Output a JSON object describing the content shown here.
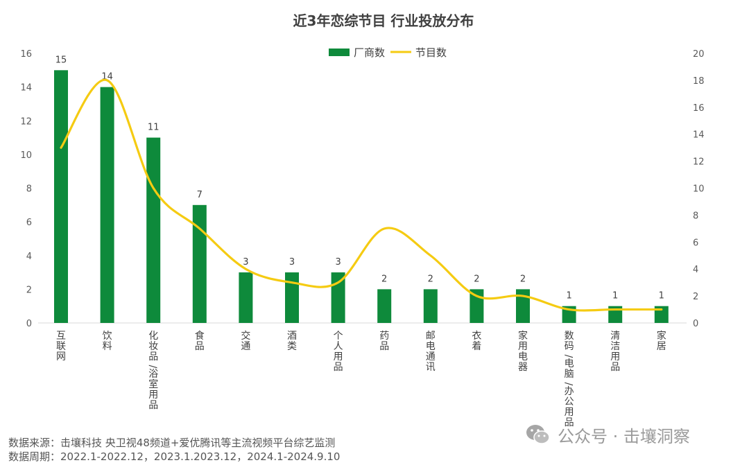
{
  "chart_data": {
    "type": "bar",
    "title": "近3年恋综节目 行业投放分布",
    "categories": [
      "互联网",
      "饮料",
      "化妆品/浴室用品",
      "食品",
      "交通",
      "酒类",
      "个人用品",
      "药品",
      "邮电通讯",
      "衣着",
      "家用电器",
      "数码/电脑/办公用品",
      "清洁用品",
      "家居"
    ],
    "series": [
      {
        "name": "厂商数",
        "kind": "bar",
        "axis": "left",
        "color": "#0E8A3B",
        "values": [
          15,
          14,
          11,
          7,
          3,
          3,
          3,
          2,
          2,
          2,
          2,
          1,
          1,
          1
        ]
      },
      {
        "name": "节目数",
        "kind": "line",
        "axis": "right",
        "color": "#F5CB12",
        "values": [
          13,
          18,
          10,
          7,
          4,
          3,
          3,
          7,
          5,
          2,
          2,
          1,
          1,
          1
        ]
      }
    ],
    "y_left": {
      "min": 0,
      "max": 16,
      "step": 2
    },
    "y_right": {
      "min": 0,
      "max": 20,
      "step": 2
    },
    "data_labels": [
      "15",
      "14",
      "11",
      "7",
      "3",
      "3",
      "3",
      "2",
      "2",
      "2",
      "2",
      "1",
      "1",
      "1"
    ],
    "legend_position": "top-center",
    "grid": false
  },
  "footer": {
    "source": "数据来源：击壤科技  央卫视48频道+爱优腾讯等主流视频平台综艺监测",
    "period": "数据周期：2022.1-2022.12，2023.1.2023.12，2024.1-2024.9.10"
  },
  "watermark": {
    "text": "公众号 · 击壤洞察",
    "icon": "wechat-icon"
  }
}
